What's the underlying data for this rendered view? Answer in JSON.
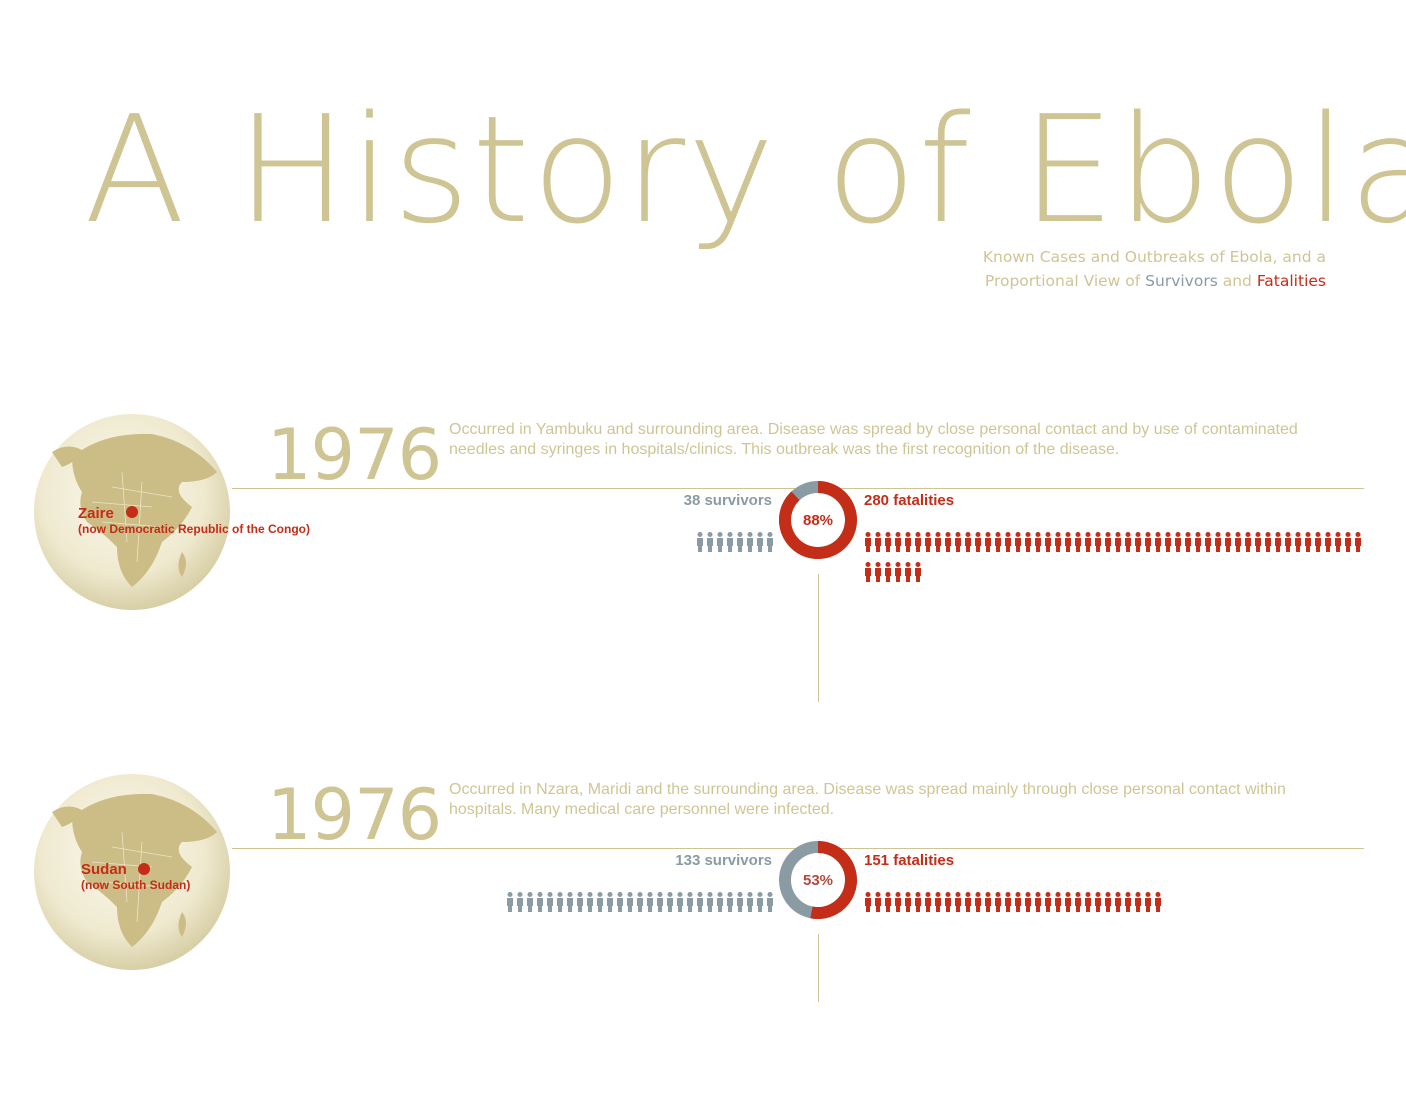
{
  "header": {
    "title": "A History of Ebola",
    "subtitle_line1": "Known Cases and Outbreaks of Ebola, and a",
    "subtitle_line2_prefix": "Proportional View of ",
    "subtitle_survivors": "Survivors",
    "subtitle_and": " and ",
    "subtitle_fatalities": "Fatalities"
  },
  "colors": {
    "title": "#cfc594",
    "survivors": "#8a9ba3",
    "fatalities": "#c42d17",
    "globe_land": "#cbbd85",
    "globe_sea": "#f3efd9"
  },
  "outbreaks": [
    {
      "year": "1976",
      "place": "Zaire",
      "place_note": "(now Democratic Republic of the Congo)",
      "description": "Occurred in Yambuku and surrounding area. Disease was spread by close personal contact and by use of contaminated needles and syringes in hospitals/clinics. This outbreak was the first recognition of the disease.",
      "survivors_label": "38 survivors",
      "fatalities_label": "280 fatalities",
      "pct_label": "88%"
    },
    {
      "year": "1976",
      "place": "Sudan",
      "place_note": "(now South Sudan)",
      "description": "Occurred in Nzara, Maridi and the surrounding area. Disease was spread mainly through close personal contact within hospitals. Many medical care personnel were infected.",
      "survivors_label": "133 survivors",
      "fatalities_label": "151 fatalities",
      "pct_label": "53%"
    }
  ],
  "chart_data": {
    "type": "bar",
    "title": "A History of Ebola",
    "categories": [
      "1976 Zaire",
      "1976 Sudan"
    ],
    "series": [
      {
        "name": "Survivors",
        "values": [
          38,
          133
        ]
      },
      {
        "name": "Fatalities",
        "values": [
          280,
          151
        ]
      }
    ],
    "fatality_rate_percent": [
      88,
      53
    ]
  }
}
